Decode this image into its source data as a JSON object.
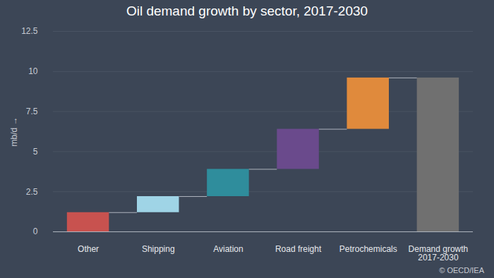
{
  "chart_data": {
    "type": "waterfall",
    "title": "Oil demand growth by sector, 2017-2030",
    "y_label": "mb/d",
    "source": "© OECD/IEA",
    "categories": [
      "Other",
      "Shipping",
      "Aviation",
      "Road freight",
      "Petrochemicals",
      "Demand growth 2017-2030"
    ],
    "values": [
      1.2,
      1.0,
      1.7,
      2.5,
      3.2,
      9.6
    ],
    "colors": [
      "#c8524f",
      "#9fd4e6",
      "#2f8d9c",
      "#6a4a8c",
      "#e08a3c",
      "#707070"
    ],
    "ylim": [
      0,
      12.5
    ],
    "yticks": [
      0,
      2.5,
      5,
      7.5,
      10,
      12.5
    ],
    "grid": true
  }
}
